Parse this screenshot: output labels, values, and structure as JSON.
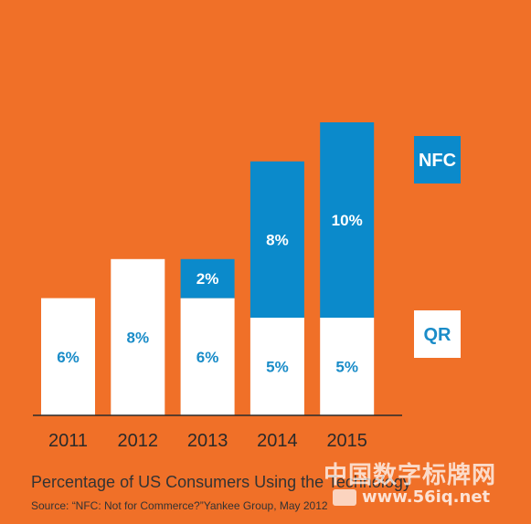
{
  "chart_data": {
    "type": "bar",
    "stacked": true,
    "categories": [
      "2011",
      "2012",
      "2013",
      "2014",
      "2015"
    ],
    "series": [
      {
        "name": "QR",
        "values": [
          6,
          8,
          6,
          5,
          5
        ],
        "labels": [
          "6%",
          "8%",
          "6%",
          "5%",
          "5%"
        ],
        "color": "#FFFFFF",
        "label_color": "#1A8CC8"
      },
      {
        "name": "NFC",
        "values": [
          0,
          0,
          2,
          8,
          10
        ],
        "labels": [
          "",
          "",
          "2%",
          "8%",
          "10%"
        ],
        "color": "#0B8ACB",
        "label_color": "#FFFFFF"
      }
    ],
    "title": "Percentage of US Consumers Using the Technology",
    "source": "Source: “NFC: Not for Commerce?”Yankee Group, May 2012",
    "legend": {
      "position": "right",
      "entries": [
        "NFC",
        "QR"
      ]
    },
    "grid": false
  },
  "colors": {
    "background": "#F07028",
    "qr": "#FFFFFF",
    "nfc": "#0B8ACB",
    "axis": "#2a2a2a"
  },
  "watermark": {
    "chinese": "中国数字标牌网",
    "url": "www.56iq.net"
  }
}
